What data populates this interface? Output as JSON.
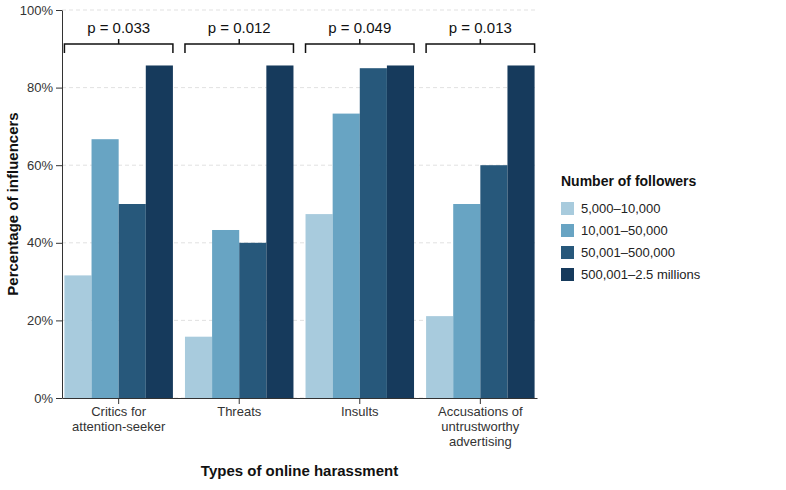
{
  "chart_data": {
    "type": "bar",
    "x_label": "Types of online harassment",
    "y_label": "Percentage of influencers",
    "legend_title": "Number of followers",
    "legend": "right",
    "grid": true,
    "categories": [
      "Critics for attention-seeker",
      "Threats",
      "Insults",
      "Accusations of untrustworthy advertising"
    ],
    "annotations": [
      "p = 0.033",
      "p = 0.012",
      "p = 0.049",
      "p = 0.013"
    ],
    "series": [
      {
        "name": "5,000–10,000",
        "color": "#a8cbdd",
        "values": [
          31.6,
          15.8,
          47.4,
          21.1
        ]
      },
      {
        "name": "10,001–50,000",
        "color": "#68a4c3",
        "values": [
          66.7,
          43.3,
          73.3,
          50.0
        ]
      },
      {
        "name": "50,001–500,000",
        "color": "#27587b",
        "values": [
          50.0,
          40.0,
          85.0,
          60.0
        ]
      },
      {
        "name": "500,001–2.5 millions",
        "color": "#163a5c",
        "values": [
          85.7,
          85.7,
          85.7,
          85.7
        ]
      }
    ],
    "ylim": [
      0,
      100
    ],
    "yticks": [
      {
        "value": 0,
        "label": "0%"
      },
      {
        "value": 20,
        "label": "20%"
      },
      {
        "value": 40,
        "label": "40%"
      },
      {
        "value": 60,
        "label": "60%"
      },
      {
        "value": 80,
        "label": "80%"
      },
      {
        "value": 100,
        "label": "100%"
      }
    ]
  }
}
